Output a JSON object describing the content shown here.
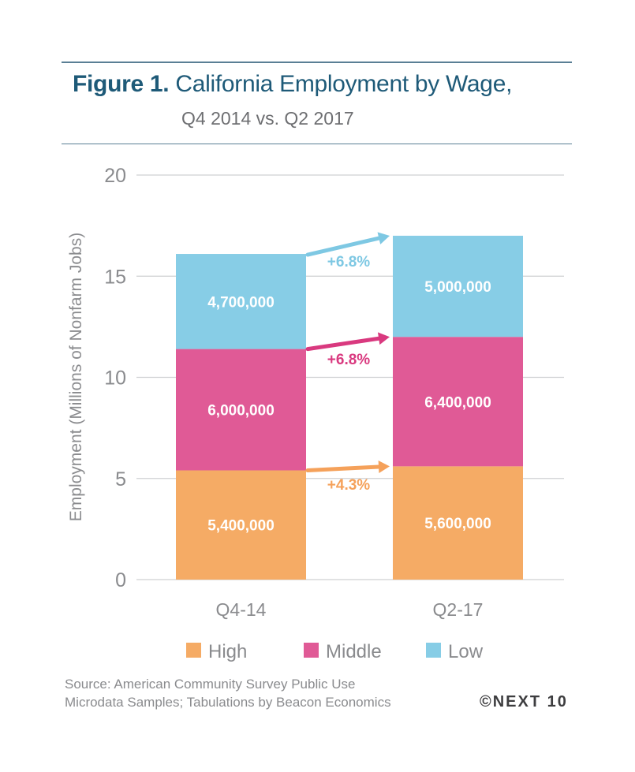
{
  "header": {
    "figure_label": "Figure 1.",
    "title": "California Employment by Wage,",
    "subtitle": "Q4 2014 vs. Q2 2017"
  },
  "chart_data": {
    "type": "bar",
    "stacked": true,
    "title": "Figure 1. California Employment by Wage, Q4 2014 vs. Q2 2017",
    "xlabel": "",
    "ylabel": "Employment (Millions of Nonfarm Jobs)",
    "ylim": [
      0,
      20
    ],
    "yticks": [
      0,
      5,
      10,
      15,
      20
    ],
    "grid": true,
    "categories": [
      "Q4-14",
      "Q2-17"
    ],
    "series": [
      {
        "name": "High",
        "color": "#f5ab65",
        "values": [
          5.4,
          5.6
        ],
        "labels": [
          "5,400,000",
          "5,600,000"
        ],
        "change_label": "+4.3%"
      },
      {
        "name": "Middle",
        "color": "#e05a96",
        "values": [
          6.0,
          6.4
        ],
        "labels": [
          "6,000,000",
          "6,400,000"
        ],
        "change_label": "+6.8%"
      },
      {
        "name": "Low",
        "color": "#87cde6",
        "values": [
          4.7,
          5.0
        ],
        "labels": [
          "4,700,000",
          "5,000,000"
        ],
        "change_label": "+6.8%"
      }
    ],
    "change_label_colors": [
      "#f5a15a",
      "#d9397f",
      "#7ec8e3"
    ],
    "legend": {
      "position": "bottom",
      "entries": [
        "High",
        "Middle",
        "Low"
      ]
    }
  },
  "footer": {
    "source_line1": "Source: American Community Survey Public Use",
    "source_line2": "Microdata Samples; Tabulations by Beacon Economics",
    "copyright": "©NEXT 10"
  }
}
